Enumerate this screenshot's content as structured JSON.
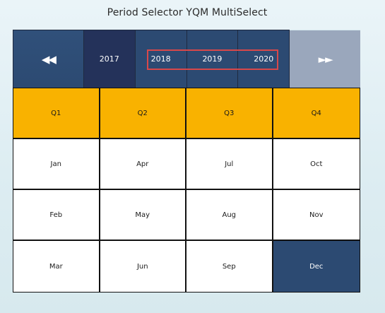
{
  "title": "Period Selector YQM MultiSelect",
  "nav": {
    "prev_label": "◀◀",
    "next_label": "►►",
    "prev_icon": "double-left-arrow-icon",
    "next_icon": "double-right-arrow-icon"
  },
  "years": [
    "2017",
    "2018",
    "2019",
    "2020"
  ],
  "quarters": [
    "Q1",
    "Q2",
    "Q3",
    "Q4"
  ],
  "months": [
    [
      "Jan",
      "Apr",
      "Jul",
      "Oct"
    ],
    [
      "Feb",
      "May",
      "Aug",
      "Nov"
    ],
    [
      "Mar",
      "Jun",
      "Sep",
      "Dec"
    ]
  ],
  "selected_years": [
    "2018",
    "2019",
    "2020"
  ],
  "selected_month": "Dec",
  "colors": {
    "selected_dark": "#2c4a72",
    "year_2017": "#24325a",
    "quarter": "#f9b200",
    "next_disabled": "#9aa7bc",
    "highlight": "#d8484a"
  }
}
